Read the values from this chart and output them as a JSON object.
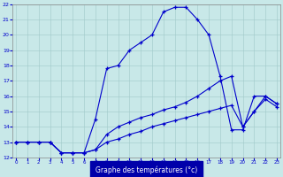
{
  "title": "Graphe des températures (°c)",
  "background_color": "#c8e8e8",
  "line_color": "#0000cc",
  "xlim": [
    0,
    23
  ],
  "ylim": [
    12,
    22
  ],
  "xticks": [
    0,
    1,
    2,
    3,
    4,
    5,
    6,
    7,
    8,
    9,
    10,
    11,
    12,
    13,
    14,
    15,
    16,
    17,
    18,
    19,
    20,
    21,
    22,
    23
  ],
  "yticks": [
    12,
    13,
    14,
    15,
    16,
    17,
    18,
    19,
    20,
    21,
    22
  ],
  "series": [
    {
      "x": [
        0,
        1,
        2,
        3,
        4,
        5,
        6,
        7,
        8,
        9,
        10,
        11,
        12,
        13,
        14,
        15,
        16,
        17,
        18,
        19,
        20,
        21,
        22,
        23
      ],
      "y": [
        13,
        13,
        13,
        13,
        12.3,
        12.3,
        12.3,
        14.5,
        17.8,
        18.0,
        19.0,
        19.5,
        20.0,
        21.5,
        21.8,
        21.8,
        21.0,
        20.0,
        17.3,
        13.8,
        13.8,
        16.0,
        16.0,
        15.5
      ]
    },
    {
      "x": [
        0,
        1,
        2,
        3,
        4,
        5,
        6,
        7,
        8,
        9,
        10,
        11,
        12,
        13,
        14,
        15,
        16,
        17,
        18,
        19,
        20,
        21,
        22,
        23
      ],
      "y": [
        13,
        13,
        13,
        13,
        12.3,
        12.3,
        12.3,
        12.5,
        13.5,
        14.0,
        14.3,
        14.6,
        14.8,
        15.1,
        15.3,
        15.6,
        16.0,
        16.5,
        17.0,
        17.3,
        14.0,
        15.0,
        16.0,
        15.5
      ]
    },
    {
      "x": [
        0,
        1,
        2,
        3,
        4,
        5,
        6,
        7,
        8,
        9,
        10,
        11,
        12,
        13,
        14,
        15,
        16,
        17,
        18,
        19,
        20,
        21,
        22,
        23
      ],
      "y": [
        13,
        13,
        13,
        13,
        12.3,
        12.3,
        12.3,
        12.5,
        13.0,
        13.2,
        13.5,
        13.7,
        14.0,
        14.2,
        14.4,
        14.6,
        14.8,
        15.0,
        15.2,
        15.4,
        14.0,
        15.0,
        15.8,
        15.3
      ]
    }
  ]
}
